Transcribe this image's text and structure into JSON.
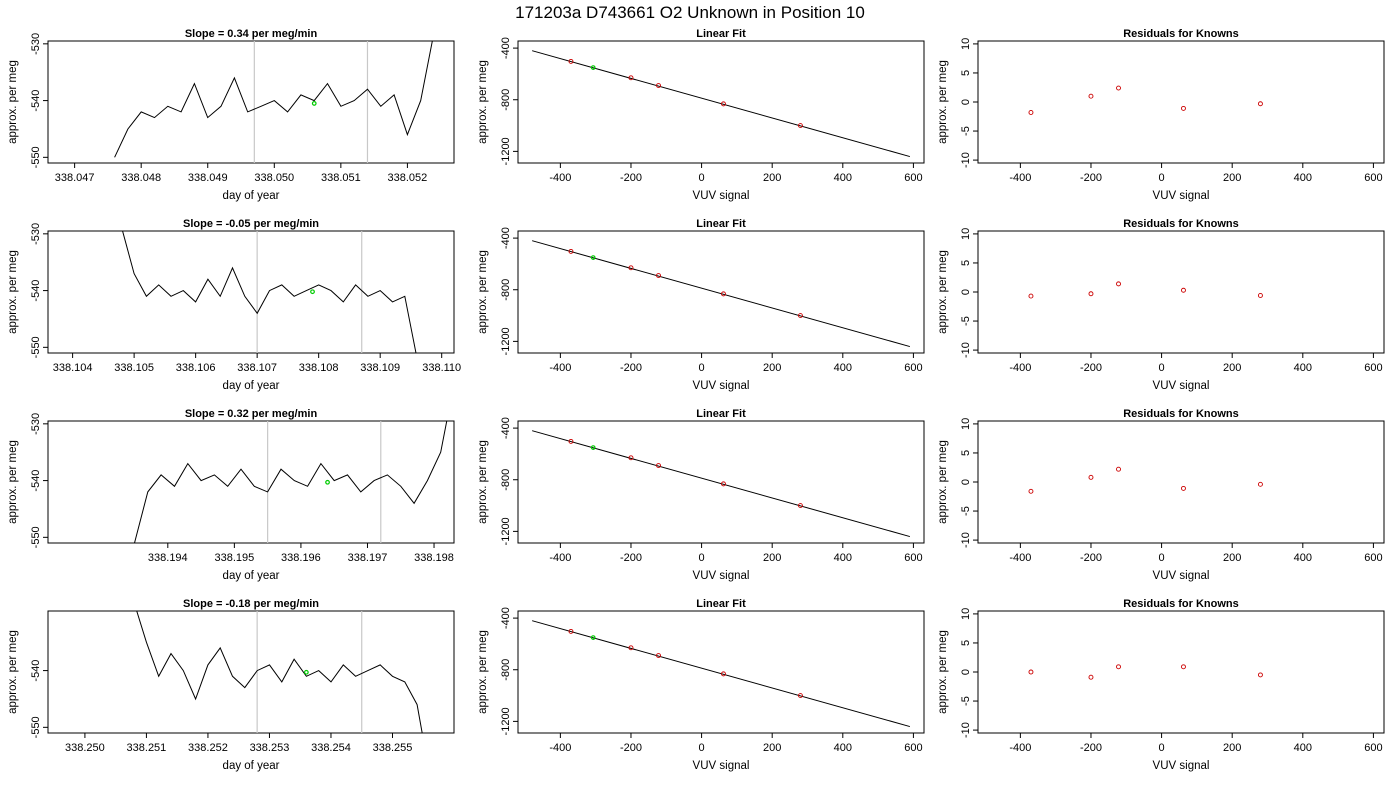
{
  "figure_title": "171203a     D743661    O2 Unknown in Position  10",
  "colors": {
    "trace": "#000000",
    "vline": "#c8c8c8",
    "point_known": "#cc0000",
    "point_unknown": "#00cc00",
    "fit_line": "#000000"
  },
  "chart_data": [
    {
      "type": "line",
      "title": "Slope =  0.34  per meg/min",
      "xlabel": "day of year",
      "ylabel": "approx. per meg",
      "x_ticks": [
        "338.047",
        "338.048",
        "338.049",
        "338.050",
        "338.051",
        "338.052"
      ],
      "y_ticks": [
        "-530",
        "-540",
        "-550"
      ],
      "xlim": [
        338.0466,
        338.0527
      ],
      "ylim": [
        -551,
        -529.5
      ],
      "vlines": [
        338.0497,
        338.0514
      ],
      "series": [
        {
          "x": [
            338.0476,
            338.0478,
            338.048,
            338.0482,
            338.0484,
            338.0486,
            338.0488,
            338.049,
            338.0492,
            338.0494,
            338.0496,
            338.0498,
            338.05,
            338.0502,
            338.0504,
            338.0506,
            338.0508,
            338.051,
            338.0512,
            338.0514,
            338.0516,
            338.0518,
            338.052,
            338.0522,
            338.0524
          ],
          "y": [
            -550,
            -545,
            -542,
            -543,
            -541,
            -542,
            -537,
            -543,
            -541,
            -536,
            -542,
            -541,
            -540,
            -542,
            -539,
            -540,
            -537,
            -541,
            -540,
            -538,
            -541,
            -539,
            -546,
            -540,
            -528
          ]
        }
      ],
      "unknown_point": {
        "x": 338.0506,
        "y": -540.5
      }
    },
    {
      "type": "scatter",
      "title": "Linear Fit",
      "xlabel": "VUV signal",
      "ylabel": "approx. per meg",
      "x_ticks": [
        "-400",
        "-200",
        "0",
        "200",
        "400",
        "600"
      ],
      "y_ticks": [
        "-400",
        "-800",
        "-1200"
      ],
      "xlim": [
        -520,
        630
      ],
      "ylim": [
        -1290,
        -345
      ],
      "fit_line": {
        "x": [
          -480,
          590
        ],
        "y": [
          -420,
          -1240
        ]
      },
      "known_points": {
        "x": [
          -370,
          -200,
          -122,
          62,
          280
        ],
        "y": [
          -503,
          -630,
          -690,
          -832,
          -1000
        ]
      },
      "unknown_point": {
        "x": -307,
        "y": -551
      }
    },
    {
      "type": "scatter",
      "title": "Residuals for Knowns",
      "xlabel": "VUV signal",
      "ylabel": "approx. per meg",
      "x_ticks": [
        "-400",
        "-200",
        "0",
        "200",
        "400",
        "600"
      ],
      "y_ticks": [
        "10",
        "5",
        "0",
        "-5",
        "-10"
      ],
      "xlim": [
        -520,
        630
      ],
      "ylim": [
        -10.5,
        10.5
      ],
      "known_points": {
        "x": [
          -370,
          -200,
          -122,
          62,
          280
        ],
        "y": [
          -1.8,
          1.0,
          2.4,
          -1.1,
          -0.3
        ]
      }
    },
    {
      "type": "line",
      "title": "Slope =  -0.05  per meg/min",
      "xlabel": "day of year",
      "ylabel": "approx. per meg",
      "x_ticks": [
        "338.104",
        "338.105",
        "338.106",
        "338.107",
        "338.108",
        "338.109",
        "338.110"
      ],
      "y_ticks": [
        "-530",
        "-540",
        "-550"
      ],
      "xlim": [
        338.1036,
        338.1102
      ],
      "ylim": [
        -551,
        -529.5
      ],
      "vlines": [
        338.107,
        338.1087
      ],
      "series": [
        {
          "x": [
            338.1048,
            338.105,
            338.1052,
            338.1054,
            338.1056,
            338.1058,
            338.106,
            338.1062,
            338.1064,
            338.1066,
            338.1068,
            338.107,
            338.1072,
            338.1074,
            338.1076,
            338.1078,
            338.108,
            338.1082,
            338.1084,
            338.1086,
            338.1088,
            338.109,
            338.1092,
            338.1094,
            338.1096
          ],
          "y": [
            -529,
            -537,
            -541,
            -539,
            -541,
            -540,
            -542,
            -538,
            -541,
            -536,
            -541,
            -544,
            -540,
            -539,
            -541,
            -540,
            -539,
            -540,
            -542,
            -539,
            -541,
            -540,
            -542,
            -541,
            -552
          ]
        }
      ],
      "unknown_point": {
        "x": 338.1079,
        "y": -540.2
      }
    },
    {
      "type": "scatter",
      "title": "Linear Fit",
      "xlabel": "VUV signal",
      "ylabel": "approx. per meg",
      "x_ticks": [
        "-400",
        "-200",
        "0",
        "200",
        "400",
        "600"
      ],
      "y_ticks": [
        "-400",
        "-800",
        "-1200"
      ],
      "xlim": [
        -520,
        630
      ],
      "ylim": [
        -1290,
        -345
      ],
      "fit_line": {
        "x": [
          -480,
          590
        ],
        "y": [
          -420,
          -1240
        ]
      },
      "known_points": {
        "x": [
          -370,
          -200,
          -122,
          62,
          280
        ],
        "y": [
          -503,
          -630,
          -690,
          -832,
          -1000
        ]
      },
      "unknown_point": {
        "x": -307,
        "y": -551
      }
    },
    {
      "type": "scatter",
      "title": "Residuals for Knowns",
      "xlabel": "VUV signal",
      "ylabel": "approx. per meg",
      "x_ticks": [
        "-400",
        "-200",
        "0",
        "200",
        "400",
        "600"
      ],
      "y_ticks": [
        "10",
        "5",
        "0",
        "-5",
        "-10"
      ],
      "xlim": [
        -520,
        630
      ],
      "ylim": [
        -10.5,
        10.5
      ],
      "known_points": {
        "x": [
          -370,
          -200,
          -122,
          62,
          280
        ],
        "y": [
          -0.7,
          -0.3,
          1.4,
          0.3,
          -0.6
        ]
      }
    },
    {
      "type": "line",
      "title": "Slope =  0.32  per meg/min",
      "xlabel": "day of year",
      "ylabel": "approx. per meg",
      "x_ticks": [
        "338.194",
        "338.195",
        "338.196",
        "338.197",
        "338.198"
      ],
      "y_ticks": [
        "-530",
        "-540",
        "-550"
      ],
      "xlim": [
        338.1922,
        338.1983
      ],
      "ylim": [
        -551,
        -529.5
      ],
      "vlines": [
        338.1955,
        338.1972
      ],
      "series": [
        {
          "x": [
            338.1935,
            338.1937,
            338.1939,
            338.1941,
            338.1943,
            338.1945,
            338.1947,
            338.1949,
            338.1951,
            338.1953,
            338.1955,
            338.1957,
            338.1959,
            338.1961,
            338.1963,
            338.1965,
            338.1967,
            338.1969,
            338.1971,
            338.1973,
            338.1975,
            338.1977,
            338.1979,
            338.1981,
            338.1982
          ],
          "y": [
            -551,
            -542,
            -539,
            -541,
            -537,
            -540,
            -539,
            -541,
            -538,
            -541,
            -542,
            -538,
            -540,
            -541,
            -537,
            -540,
            -539,
            -542,
            -540,
            -539,
            -541,
            -544,
            -540,
            -535,
            -529
          ]
        }
      ],
      "unknown_point": {
        "x": 338.1964,
        "y": -540.3
      }
    },
    {
      "type": "scatter",
      "title": "Linear Fit",
      "xlabel": "VUV signal",
      "ylabel": "approx. per meg",
      "x_ticks": [
        "-400",
        "-200",
        "0",
        "200",
        "400",
        "600"
      ],
      "y_ticks": [
        "-400",
        "-800",
        "-1200"
      ],
      "xlim": [
        -520,
        630
      ],
      "ylim": [
        -1290,
        -345
      ],
      "fit_line": {
        "x": [
          -480,
          590
        ],
        "y": [
          -420,
          -1240
        ]
      },
      "known_points": {
        "x": [
          -370,
          -200,
          -122,
          62,
          280
        ],
        "y": [
          -503,
          -630,
          -690,
          -832,
          -1000
        ]
      },
      "unknown_point": {
        "x": -307,
        "y": -551
      }
    },
    {
      "type": "scatter",
      "title": "Residuals for Knowns",
      "xlabel": "VUV signal",
      "ylabel": "approx. per meg",
      "x_ticks": [
        "-400",
        "-200",
        "0",
        "200",
        "400",
        "600"
      ],
      "y_ticks": [
        "10",
        "5",
        "0",
        "-5",
        "-10"
      ],
      "xlim": [
        -520,
        630
      ],
      "ylim": [
        -10.5,
        10.5
      ],
      "known_points": {
        "x": [
          -370,
          -200,
          -122,
          62,
          280
        ],
        "y": [
          -1.6,
          0.8,
          2.2,
          -1.1,
          -0.4
        ]
      }
    },
    {
      "type": "line",
      "title": "Slope =  -0.18  per meg/min",
      "xlabel": "day of year",
      "ylabel": "approx. per meg",
      "x_ticks": [
        "338.250",
        "338.251",
        "338.252",
        "338.253",
        "338.254",
        "338.255"
      ],
      "y_ticks": [
        "-540",
        "-550"
      ],
      "xlim": [
        338.2494,
        338.256
      ],
      "ylim": [
        -551,
        -529.5
      ],
      "vlines": [
        338.2528,
        338.2545
      ],
      "series": [
        {
          "x": [
            338.2508,
            338.251,
            338.2512,
            338.2514,
            338.2516,
            338.2518,
            338.252,
            338.2522,
            338.2524,
            338.2526,
            338.2528,
            338.253,
            338.2532,
            338.2534,
            338.2536,
            338.2538,
            338.254,
            338.2542,
            338.2544,
            338.2546,
            338.2548,
            338.255,
            338.2552,
            338.2554,
            338.2555
          ],
          "y": [
            -528,
            -535,
            -541,
            -537,
            -540,
            -545,
            -539,
            -536,
            -541,
            -543,
            -540,
            -539,
            -542,
            -538,
            -541,
            -540,
            -542,
            -539,
            -541,
            -540,
            -539,
            -541,
            -542,
            -546,
            -552
          ]
        }
      ],
      "unknown_point": {
        "x": 338.2536,
        "y": -540.3
      }
    },
    {
      "type": "scatter",
      "title": "Linear Fit",
      "xlabel": "VUV signal",
      "ylabel": "approx. per meg",
      "x_ticks": [
        "-400",
        "-200",
        "0",
        "200",
        "400",
        "600"
      ],
      "y_ticks": [
        "-400",
        "-800",
        "-1200"
      ],
      "xlim": [
        -520,
        630
      ],
      "ylim": [
        -1290,
        -345
      ],
      "fit_line": {
        "x": [
          -480,
          590
        ],
        "y": [
          -420,
          -1240
        ]
      },
      "known_points": {
        "x": [
          -370,
          -200,
          -122,
          62,
          280
        ],
        "y": [
          -503,
          -630,
          -690,
          -832,
          -1000
        ]
      },
      "unknown_point": {
        "x": -307,
        "y": -551
      }
    },
    {
      "type": "scatter",
      "title": "Residuals for Knowns",
      "xlabel": "VUV signal",
      "ylabel": "approx. per meg",
      "x_ticks": [
        "-400",
        "-200",
        "0",
        "200",
        "400",
        "600"
      ],
      "y_ticks": [
        "10",
        "5",
        "0",
        "-5",
        "-10"
      ],
      "xlim": [
        -520,
        630
      ],
      "ylim": [
        -10.5,
        10.5
      ],
      "known_points": {
        "x": [
          -370,
          -200,
          -122,
          62,
          280
        ],
        "y": [
          0.0,
          -0.9,
          0.9,
          0.9,
          -0.5
        ]
      }
    }
  ]
}
